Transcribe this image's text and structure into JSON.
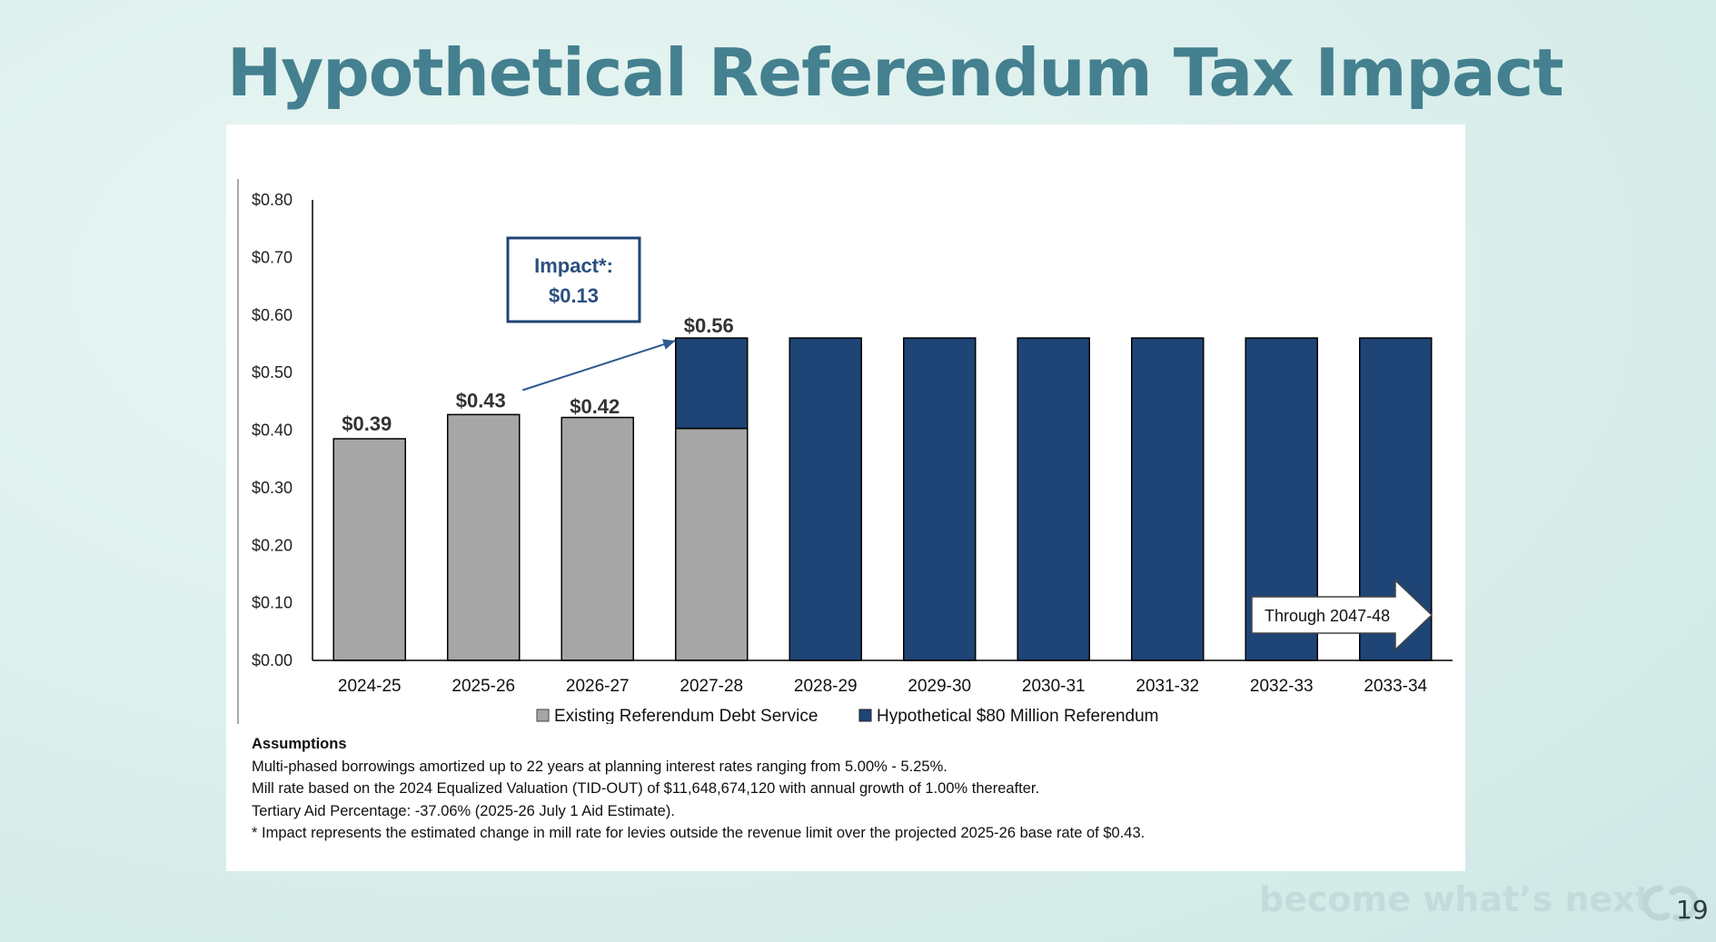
{
  "slide": {
    "title": "Hypothetical Referendum Tax Impact",
    "brand_tagline": "become what’s next",
    "page_number": "19"
  },
  "chart_data": {
    "type": "bar",
    "stacked": true,
    "title": "",
    "xlabel": "",
    "ylabel": "",
    "ylim": [
      0,
      0.8
    ],
    "y_ticks": [
      "$0.00",
      "$0.10",
      "$0.20",
      "$0.30",
      "$0.40",
      "$0.50",
      "$0.60",
      "$0.70",
      "$0.80"
    ],
    "categories": [
      "2024-25",
      "2025-26",
      "2026-27",
      "2027-28",
      "2028-29",
      "2029-30",
      "2030-31",
      "2031-32",
      "2032-33",
      "2033-34"
    ],
    "series": [
      {
        "name": "Existing Referendum Debt Service",
        "color": "#a6a6a6",
        "values": [
          0.385,
          0.427,
          0.422,
          0.403,
          0,
          0,
          0,
          0,
          0,
          0
        ]
      },
      {
        "name": "Hypothetical $80 Million Referendum",
        "color": "#1f4476",
        "values": [
          0,
          0,
          0,
          0.157,
          0.56,
          0.56,
          0.56,
          0.56,
          0.56,
          0.56
        ]
      }
    ],
    "data_labels": [
      {
        "category": "2024-25",
        "text": "$0.39",
        "value": 0.39
      },
      {
        "category": "2025-26",
        "text": "$0.43",
        "value": 0.43
      },
      {
        "category": "2026-27",
        "text": "$0.42",
        "value": 0.42
      },
      {
        "category": "2027-28",
        "text": "$0.56",
        "value": 0.56
      }
    ],
    "annotations": {
      "impact_line1": "Impact*:",
      "impact_line2": "$0.13",
      "through_label": "Through 2047-48"
    },
    "legend_position": "bottom"
  },
  "assumptions": {
    "heading": "Assumptions",
    "lines": [
      "Multi-phased borrowings amortized up to 22 years at planning interest rates ranging from 5.00% - 5.25%.",
      "Mill rate based on the 2024 Equalized Valuation (TID-OUT) of $11,648,674,120 with annual growth of 1.00% thereafter.",
      "Tertiary Aid Percentage: -37.06% (2025-26 July 1 Aid Estimate).",
      "* Impact represents the estimated change in mill rate for levies outside the revenue limit over the projected 2025-26 base rate of $0.43."
    ]
  },
  "colors": {
    "title": "#44808f",
    "existing": "#a6a6a6",
    "hypothetical": "#1f4476",
    "annotation": "#2b4f7e",
    "brand": "#c3dcdb"
  }
}
